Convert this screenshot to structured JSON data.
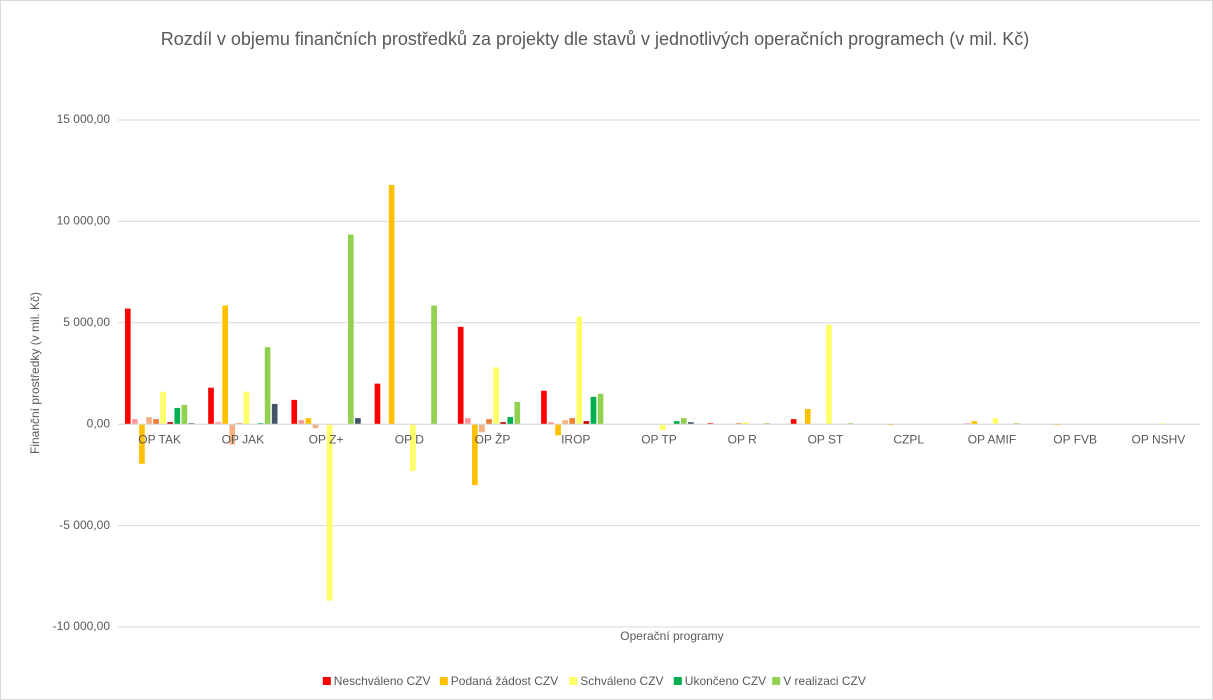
{
  "chart_data": {
    "type": "bar",
    "title": "Rozdíl v objemu finančních prostředků za projekty dle stavů v jednotlivých operačních programech (v mil. Kč)",
    "x_label": "Operační programy",
    "y_label": "Finanční prostředky (v mil. Kč)",
    "categories": [
      "OP TAK",
      "OP JAK",
      "OP Z+",
      "OP D",
      "OP ŽP",
      "IROP",
      "OP TP",
      "OP R",
      "OP ST",
      "CZPL",
      "OP AMIF",
      "OP FVB",
      "OP NSHV"
    ],
    "series": [
      {
        "name": "Neschváleno CZV",
        "color": "#ff0000",
        "values": [
          5700,
          1800,
          1200,
          2000,
          4800,
          1650,
          0,
          50,
          250,
          0,
          0,
          0,
          0
        ]
      },
      {
        "color": "#ff9999",
        "values": [
          250,
          100,
          200,
          0,
          300,
          100,
          0,
          0,
          0,
          0,
          50,
          0,
          0
        ]
      },
      {
        "name": "Podaná žádost CZV",
        "color": "#ffc000",
        "values": [
          -1950,
          5850,
          300,
          11800,
          -3000,
          -550,
          0,
          0,
          750,
          -50,
          150,
          -50,
          0
        ]
      },
      {
        "color": "#f4b183",
        "values": [
          350,
          -1000,
          -200,
          0,
          -400,
          200,
          0,
          0,
          0,
          0,
          0,
          0,
          0
        ]
      },
      {
        "color": "#ed7d31",
        "values": [
          250,
          50,
          0,
          0,
          250,
          300,
          0,
          50,
          0,
          0,
          0,
          0,
          0
        ]
      },
      {
        "name": "Schváleno CZV",
        "color": "#ffff66",
        "values": [
          1600,
          1600,
          -8700,
          -2300,
          2800,
          5300,
          -300,
          100,
          4900,
          0,
          300,
          0,
          50
        ]
      },
      {
        "color": "#c00000",
        "values": [
          100,
          0,
          0,
          0,
          100,
          150,
          0,
          0,
          0,
          0,
          0,
          0,
          0
        ]
      },
      {
        "name": "Ukončeno CZV",
        "color": "#00b050",
        "values": [
          800,
          50,
          0,
          0,
          350,
          1350,
          150,
          0,
          0,
          0,
          0,
          0,
          0
        ]
      },
      {
        "name": "V realizaci CZV",
        "color": "#92d050",
        "values": [
          950,
          3800,
          9350,
          5850,
          1100,
          1500,
          300,
          50,
          50,
          0,
          50,
          0,
          0
        ]
      },
      {
        "color": "#44546a",
        "values": [
          50,
          1000,
          300,
          0,
          0,
          0,
          100,
          0,
          0,
          0,
          0,
          0,
          0
        ]
      }
    ],
    "ylim": [
      -10000,
      15000
    ],
    "yticks": [
      {
        "value": -10000,
        "label": "-10 000,00"
      },
      {
        "value": -5000,
        "label": "-5 000,00"
      },
      {
        "value": 0,
        "label": "0,00"
      },
      {
        "value": 5000,
        "label": "5 000,00"
      },
      {
        "value": 10000,
        "label": "10 000,00"
      },
      {
        "value": 15000,
        "label": "15 000,00"
      }
    ],
    "grid": true
  }
}
